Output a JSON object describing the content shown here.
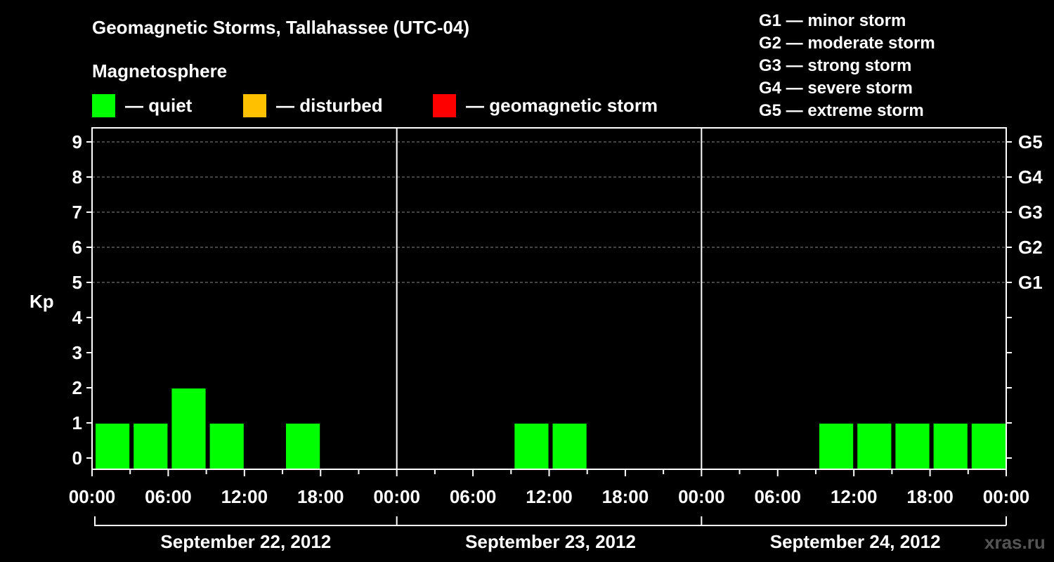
{
  "header": {
    "title": "Geomagnetic Storms, Tallahassee (UTC-04)",
    "subtitle": "Magnetosphere"
  },
  "legend": [
    {
      "label": "— quiet",
      "color": "#00ff00"
    },
    {
      "label": "— disturbed",
      "color": "#ffc000"
    },
    {
      "label": "— geomagnetic storm",
      "color": "#ff0000"
    }
  ],
  "g_scale": [
    "G1 — minor storm",
    "G2 — moderate storm",
    "G3 — strong storm",
    "G4 — severe storm",
    "G5 — extreme storm"
  ],
  "watermark": "xras.ru",
  "chart_data": {
    "type": "bar",
    "ylabel": "Kp",
    "ylim": [
      0,
      9
    ],
    "yticks": [
      0,
      1,
      2,
      3,
      4,
      5,
      6,
      7,
      8,
      9
    ],
    "right_axis_labels": [
      {
        "kp": 5,
        "label": "G1"
      },
      {
        "kp": 6,
        "label": "G2"
      },
      {
        "kp": 7,
        "label": "G3"
      },
      {
        "kp": 8,
        "label": "G4"
      },
      {
        "kp": 9,
        "label": "G5"
      }
    ],
    "grid": "dashed horizontal at Kp 5-9",
    "bar_color": "#00ff00",
    "xtick_labels": [
      "00:00",
      "06:00",
      "12:00",
      "18:00",
      "00:00",
      "06:00",
      "12:00",
      "18:00",
      "00:00",
      "06:00",
      "12:00",
      "18:00",
      "00:00"
    ],
    "days": [
      {
        "label": "September 22, 2012",
        "values": [
          1,
          1,
          2,
          1,
          0,
          1,
          0,
          0
        ]
      },
      {
        "label": "September 23, 2012",
        "values": [
          0,
          0,
          0,
          1,
          1,
          0,
          0,
          0
        ]
      },
      {
        "label": "September 24, 2012",
        "values": [
          0,
          0,
          0,
          1,
          1,
          1,
          1,
          1
        ]
      }
    ]
  }
}
